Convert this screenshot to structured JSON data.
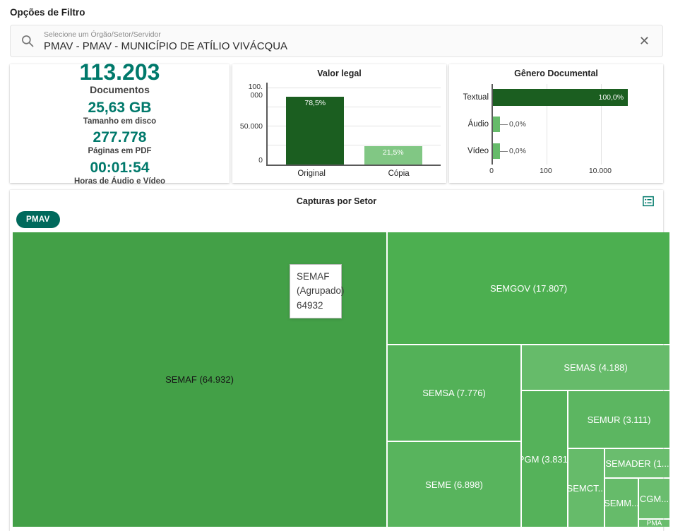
{
  "page": {
    "title": "Opções de Filtro"
  },
  "filter": {
    "label": "Selecione um Órgão/Setor/Servidor",
    "value": "PMAV - PMAV - MUNICÍPIO DE ATÍLIO VIVÁCQUA",
    "clear_icon": "✕"
  },
  "stats": [
    {
      "value": "113.203",
      "label": "Documentos"
    },
    {
      "value": "25,63 GB",
      "label": "Tamanho em disco"
    },
    {
      "value": "277.778",
      "label": "Páginas em PDF"
    },
    {
      "value": "00:01:54",
      "label": "Horas de Áudio e Vídeo"
    }
  ],
  "colors": {
    "accent_teal": "#00796b",
    "chip_teal": "#00695c",
    "bar_dark_green": "#1b5e20",
    "bar_light_green": "#81c784",
    "treemap_green": "#4caf50"
  },
  "chart_data": [
    {
      "type": "bar",
      "title": "Valor legal",
      "categories": [
        "Original",
        "Cópia"
      ],
      "values": [
        88865,
        24338
      ],
      "value_labels": [
        "78,5%",
        "21,5%"
      ],
      "ylim": [
        0,
        107000
      ],
      "yticks": [
        "100.000",
        "50.000",
        "0"
      ],
      "grid": true,
      "colors": [
        "#1b5e20",
        "#81c784"
      ]
    },
    {
      "type": "bar",
      "orientation": "horizontal",
      "title": "Gênero Documental",
      "categories": [
        "Textual",
        "Áudio",
        "Vídeo"
      ],
      "values": [
        113203,
        0,
        0
      ],
      "value_labels": [
        "100,0%",
        "0,0%",
        "0,0%"
      ],
      "xscale": "log",
      "xticks": [
        "0",
        "100",
        "10.000"
      ],
      "xlim_max": 1000000,
      "colors": [
        "#1b5e20",
        "#66bb6a",
        "#66bb6a"
      ]
    },
    {
      "type": "treemap",
      "title": "Capturas por Setor",
      "group": "PMAV",
      "items": [
        {
          "label": "SEMAF (64.932)",
          "name": "SEMAF",
          "value": 64932
        },
        {
          "label": "SEMGOV (17.807)",
          "name": "SEMGOV",
          "value": 17807
        },
        {
          "label": "SEMSA (7.776)",
          "name": "SEMSA",
          "value": 7776
        },
        {
          "label": "SEMAS (4.188)",
          "name": "SEMAS",
          "value": 4188
        },
        {
          "label": "SEMUR (3.111)",
          "name": "SEMUR",
          "value": 3111
        },
        {
          "label": "PGM (3.831)",
          "name": "PGM",
          "value": 3831
        },
        {
          "label": "SEME (6.898)",
          "name": "SEME",
          "value": 6898
        },
        {
          "label": "SEMCT...",
          "name": "SEMCT"
        },
        {
          "label": "SEMADER (1...",
          "name": "SEMADER"
        },
        {
          "label": "SEMM...",
          "name": "SEMM"
        },
        {
          "label": "CGM...",
          "name": "CGM"
        },
        {
          "label": "PMA",
          "name": "PMA"
        }
      ]
    }
  ],
  "capturas": {
    "title": "Capturas por Setor",
    "chip": "PMAV",
    "tooltip": {
      "line1": "SEMAF",
      "line2": "(Agrupado)",
      "line3": "64932"
    }
  }
}
